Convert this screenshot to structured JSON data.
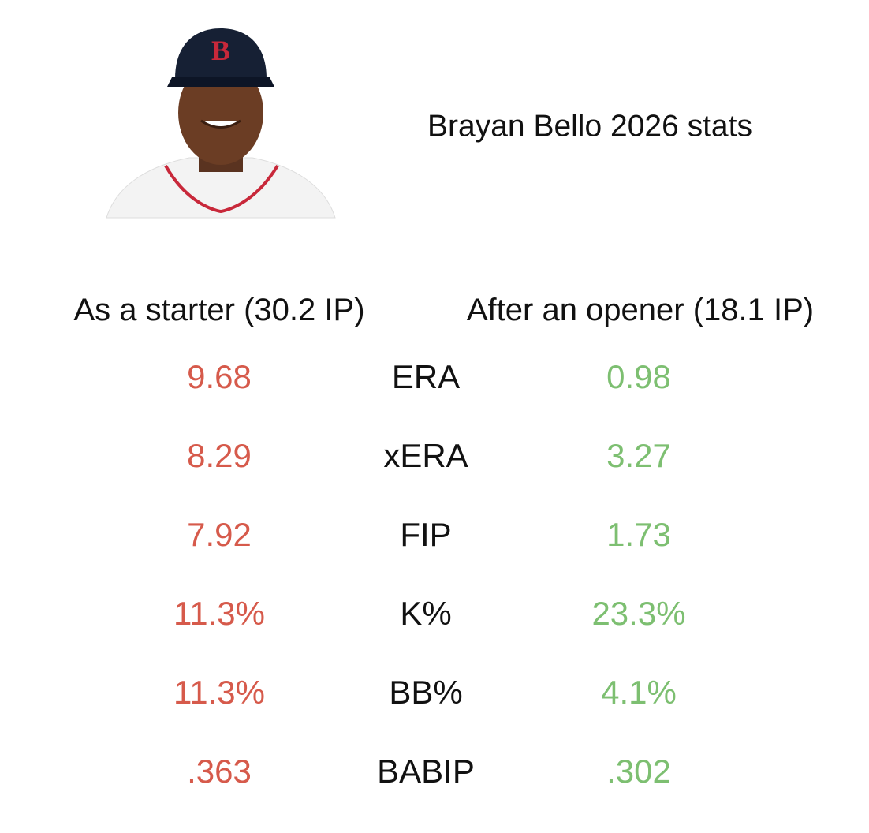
{
  "header": {
    "title": "Brayan Bello 2026 stats"
  },
  "table": {
    "headers": [
      "As a starter (30.2 IP)",
      "After an opener (18.1 IP)"
    ],
    "rows": [
      [
        "9.68",
        "ERA",
        "0.98"
      ],
      [
        "8.29",
        "xERA",
        "3.27"
      ],
      [
        "7.92",
        "FIP",
        "1.73"
      ],
      [
        "11.3%",
        "K%",
        "23.3%"
      ],
      [
        "11.3%",
        "BB%",
        "4.1%"
      ],
      [
        ".363",
        "BABIP",
        ".302"
      ]
    ]
  }
}
